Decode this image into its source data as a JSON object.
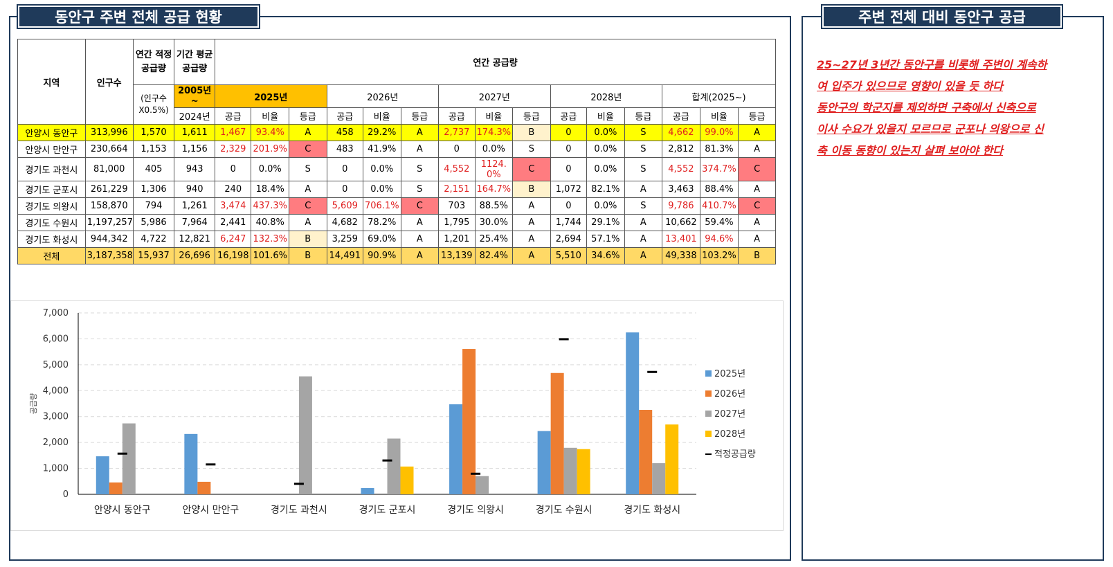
{
  "titles": {
    "left": "동안구 주변 전체 공급 현황",
    "right": "주변 전체 대비 동안구 공급"
  },
  "table": {
    "hdr": {
      "region": "지역",
      "population": "인구수",
      "proper": "연간 적정 공급량",
      "avg": "기간 평균 공급량",
      "annual": "연간 공급량",
      "proper_sub": "(인구수 X0.5%)",
      "avg_sub1": "2005년 ~",
      "avg_sub2": "2024년",
      "y2025": "2025년",
      "y2026": "2026년",
      "y2027": "2027년",
      "y2028": "2028년",
      "total": "합계(2025~)",
      "supply": "공급",
      "ratio": "비율",
      "grade": "등급"
    },
    "rows": [
      {
        "region": "안양시 동안구",
        "pop": "313,996",
        "proper": "1,570",
        "avg": "1,611",
        "c": [
          "1,467",
          "93.4%",
          "A",
          "458",
          "29.2%",
          "A",
          "2,737",
          "174.3%",
          "B",
          "0",
          "0.0%",
          "S",
          "4,662",
          "99.0%",
          "A"
        ]
      },
      {
        "region": "안양시 만안구",
        "pop": "230,664",
        "proper": "1,153",
        "avg": "1,156",
        "c": [
          "2,329",
          "201.9%",
          "C",
          "483",
          "41.9%",
          "A",
          "0",
          "0.0%",
          "S",
          "0",
          "0.0%",
          "S",
          "2,812",
          "81.3%",
          "A"
        ]
      },
      {
        "region": "경기도 과천시",
        "pop": "81,000",
        "proper": "405",
        "avg": "943",
        "c": [
          "0",
          "0.0%",
          "S",
          "0",
          "0.0%",
          "S",
          "4,552",
          "1124.0%",
          "C",
          "0",
          "0.0%",
          "S",
          "4,552",
          "374.7%",
          "C"
        ]
      },
      {
        "region": "경기도 군포시",
        "pop": "261,229",
        "proper": "1,306",
        "avg": "940",
        "c": [
          "240",
          "18.4%",
          "A",
          "0",
          "0.0%",
          "S",
          "2,151",
          "164.7%",
          "B",
          "1,072",
          "82.1%",
          "A",
          "3,463",
          "88.4%",
          "A"
        ]
      },
      {
        "region": "경기도 의왕시",
        "pop": "158,870",
        "proper": "794",
        "avg": "1,261",
        "c": [
          "3,474",
          "437.3%",
          "C",
          "5,609",
          "706.1%",
          "C",
          "703",
          "88.5%",
          "A",
          "0",
          "0.0%",
          "S",
          "9,786",
          "410.7%",
          "C"
        ]
      },
      {
        "region": "경기도 수원시",
        "pop": "1,197,257",
        "proper": "5,986",
        "avg": "7,964",
        "c": [
          "2,441",
          "40.8%",
          "A",
          "4,682",
          "78.2%",
          "A",
          "1,795",
          "30.0%",
          "A",
          "1,744",
          "29.1%",
          "A",
          "10,662",
          "59.4%",
          "A"
        ]
      },
      {
        "region": "경기도 화성시",
        "pop": "944,342",
        "proper": "4,722",
        "avg": "12,821",
        "c": [
          "6,247",
          "132.3%",
          "B",
          "3,259",
          "69.0%",
          "A",
          "1,201",
          "25.4%",
          "A",
          "2,694",
          "57.1%",
          "A",
          "13,401",
          "94.6%",
          "A"
        ]
      },
      {
        "region": "전체",
        "pop": "3,187,358",
        "proper": "15,937",
        "avg": "26,696",
        "c": [
          "16,198",
          "101.6%",
          "B",
          "14,491",
          "90.9%",
          "A",
          "13,139",
          "82.4%",
          "A",
          "5,510",
          "34.6%",
          "A",
          "49,338",
          "103.2%",
          "B"
        ]
      }
    ]
  },
  "chart_data": {
    "type": "bar",
    "categories": [
      "안양시 동안구",
      "안양시 만안구",
      "경기도 과천시",
      "경기도 군포시",
      "경기도 의왕시",
      "경기도 수원시",
      "경기도 화성시"
    ],
    "series": [
      {
        "name": "2025년",
        "values": [
          1467,
          2329,
          0,
          240,
          3474,
          2441,
          6247
        ],
        "color": "#5b9bd5"
      },
      {
        "name": "2026년",
        "values": [
          458,
          483,
          0,
          0,
          5609,
          4682,
          3259
        ],
        "color": "#ed7d31"
      },
      {
        "name": "2027년",
        "values": [
          2737,
          0,
          4552,
          2151,
          703,
          1795,
          1201
        ],
        "color": "#a5a5a5"
      },
      {
        "name": "2028년",
        "values": [
          0,
          0,
          0,
          1072,
          0,
          1744,
          2694
        ],
        "color": "#ffc000"
      }
    ],
    "markers": {
      "name": "적정공급량",
      "values": [
        1570,
        1153,
        405,
        1306,
        794,
        5986,
        4722
      ],
      "color": "#000000"
    },
    "ylabel": "공급량",
    "ylim": [
      0,
      7000
    ],
    "yticks": [
      "0",
      "1,000",
      "2,000",
      "3,000",
      "4,000",
      "5,000",
      "6,000",
      "7,000"
    ],
    "grid": true,
    "legend": "right"
  },
  "note": {
    "lines": [
      "25~27년 3년간 동안구를 비롯해 주변이 계속하",
      "여 입주가 있으므로 영향이 있을 듯 하다",
      "동안구의 학군지를 제외하면 구축에서 신축으로",
      "이사 수요가 있을지 모르므로 군포나 의왕으로 신",
      "축 이동 동향이 있는지 살펴 보아야 한다"
    ]
  }
}
